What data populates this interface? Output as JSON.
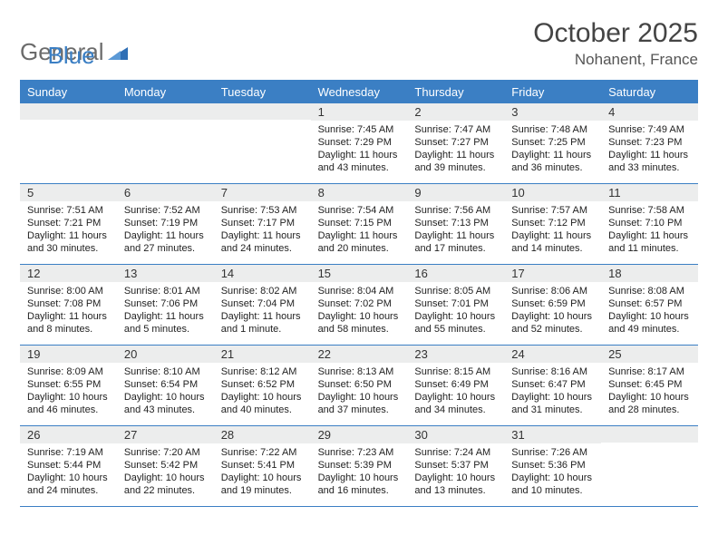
{
  "brand": {
    "part1": "General",
    "part2": "Blue"
  },
  "title": "October 2025",
  "location": "Nohanent, France",
  "colors": {
    "accent": "#3b7fc4",
    "headerText": "#ffffff",
    "bandBg": "#eceded",
    "bodyText": "#222222",
    "titleText": "#444444"
  },
  "layout": {
    "columns": 7,
    "rows": 5
  },
  "dayNames": [
    "Sunday",
    "Monday",
    "Tuesday",
    "Wednesday",
    "Thursday",
    "Friday",
    "Saturday"
  ],
  "weeks": [
    [
      {
        "num": "",
        "lines": []
      },
      {
        "num": "",
        "lines": []
      },
      {
        "num": "",
        "lines": []
      },
      {
        "num": "1",
        "lines": [
          "Sunrise: 7:45 AM",
          "Sunset: 7:29 PM",
          "Daylight: 11 hours",
          "and 43 minutes."
        ]
      },
      {
        "num": "2",
        "lines": [
          "Sunrise: 7:47 AM",
          "Sunset: 7:27 PM",
          "Daylight: 11 hours",
          "and 39 minutes."
        ]
      },
      {
        "num": "3",
        "lines": [
          "Sunrise: 7:48 AM",
          "Sunset: 7:25 PM",
          "Daylight: 11 hours",
          "and 36 minutes."
        ]
      },
      {
        "num": "4",
        "lines": [
          "Sunrise: 7:49 AM",
          "Sunset: 7:23 PM",
          "Daylight: 11 hours",
          "and 33 minutes."
        ]
      }
    ],
    [
      {
        "num": "5",
        "lines": [
          "Sunrise: 7:51 AM",
          "Sunset: 7:21 PM",
          "Daylight: 11 hours",
          "and 30 minutes."
        ]
      },
      {
        "num": "6",
        "lines": [
          "Sunrise: 7:52 AM",
          "Sunset: 7:19 PM",
          "Daylight: 11 hours",
          "and 27 minutes."
        ]
      },
      {
        "num": "7",
        "lines": [
          "Sunrise: 7:53 AM",
          "Sunset: 7:17 PM",
          "Daylight: 11 hours",
          "and 24 minutes."
        ]
      },
      {
        "num": "8",
        "lines": [
          "Sunrise: 7:54 AM",
          "Sunset: 7:15 PM",
          "Daylight: 11 hours",
          "and 20 minutes."
        ]
      },
      {
        "num": "9",
        "lines": [
          "Sunrise: 7:56 AM",
          "Sunset: 7:13 PM",
          "Daylight: 11 hours",
          "and 17 minutes."
        ]
      },
      {
        "num": "10",
        "lines": [
          "Sunrise: 7:57 AM",
          "Sunset: 7:12 PM",
          "Daylight: 11 hours",
          "and 14 minutes."
        ]
      },
      {
        "num": "11",
        "lines": [
          "Sunrise: 7:58 AM",
          "Sunset: 7:10 PM",
          "Daylight: 11 hours",
          "and 11 minutes."
        ]
      }
    ],
    [
      {
        "num": "12",
        "lines": [
          "Sunrise: 8:00 AM",
          "Sunset: 7:08 PM",
          "Daylight: 11 hours",
          "and 8 minutes."
        ]
      },
      {
        "num": "13",
        "lines": [
          "Sunrise: 8:01 AM",
          "Sunset: 7:06 PM",
          "Daylight: 11 hours",
          "and 5 minutes."
        ]
      },
      {
        "num": "14",
        "lines": [
          "Sunrise: 8:02 AM",
          "Sunset: 7:04 PM",
          "Daylight: 11 hours",
          "and 1 minute."
        ]
      },
      {
        "num": "15",
        "lines": [
          "Sunrise: 8:04 AM",
          "Sunset: 7:02 PM",
          "Daylight: 10 hours",
          "and 58 minutes."
        ]
      },
      {
        "num": "16",
        "lines": [
          "Sunrise: 8:05 AM",
          "Sunset: 7:01 PM",
          "Daylight: 10 hours",
          "and 55 minutes."
        ]
      },
      {
        "num": "17",
        "lines": [
          "Sunrise: 8:06 AM",
          "Sunset: 6:59 PM",
          "Daylight: 10 hours",
          "and 52 minutes."
        ]
      },
      {
        "num": "18",
        "lines": [
          "Sunrise: 8:08 AM",
          "Sunset: 6:57 PM",
          "Daylight: 10 hours",
          "and 49 minutes."
        ]
      }
    ],
    [
      {
        "num": "19",
        "lines": [
          "Sunrise: 8:09 AM",
          "Sunset: 6:55 PM",
          "Daylight: 10 hours",
          "and 46 minutes."
        ]
      },
      {
        "num": "20",
        "lines": [
          "Sunrise: 8:10 AM",
          "Sunset: 6:54 PM",
          "Daylight: 10 hours",
          "and 43 minutes."
        ]
      },
      {
        "num": "21",
        "lines": [
          "Sunrise: 8:12 AM",
          "Sunset: 6:52 PM",
          "Daylight: 10 hours",
          "and 40 minutes."
        ]
      },
      {
        "num": "22",
        "lines": [
          "Sunrise: 8:13 AM",
          "Sunset: 6:50 PM",
          "Daylight: 10 hours",
          "and 37 minutes."
        ]
      },
      {
        "num": "23",
        "lines": [
          "Sunrise: 8:15 AM",
          "Sunset: 6:49 PM",
          "Daylight: 10 hours",
          "and 34 minutes."
        ]
      },
      {
        "num": "24",
        "lines": [
          "Sunrise: 8:16 AM",
          "Sunset: 6:47 PM",
          "Daylight: 10 hours",
          "and 31 minutes."
        ]
      },
      {
        "num": "25",
        "lines": [
          "Sunrise: 8:17 AM",
          "Sunset: 6:45 PM",
          "Daylight: 10 hours",
          "and 28 minutes."
        ]
      }
    ],
    [
      {
        "num": "26",
        "lines": [
          "Sunrise: 7:19 AM",
          "Sunset: 5:44 PM",
          "Daylight: 10 hours",
          "and 24 minutes."
        ]
      },
      {
        "num": "27",
        "lines": [
          "Sunrise: 7:20 AM",
          "Sunset: 5:42 PM",
          "Daylight: 10 hours",
          "and 22 minutes."
        ]
      },
      {
        "num": "28",
        "lines": [
          "Sunrise: 7:22 AM",
          "Sunset: 5:41 PM",
          "Daylight: 10 hours",
          "and 19 minutes."
        ]
      },
      {
        "num": "29",
        "lines": [
          "Sunrise: 7:23 AM",
          "Sunset: 5:39 PM",
          "Daylight: 10 hours",
          "and 16 minutes."
        ]
      },
      {
        "num": "30",
        "lines": [
          "Sunrise: 7:24 AM",
          "Sunset: 5:37 PM",
          "Daylight: 10 hours",
          "and 13 minutes."
        ]
      },
      {
        "num": "31",
        "lines": [
          "Sunrise: 7:26 AM",
          "Sunset: 5:36 PM",
          "Daylight: 10 hours",
          "and 10 minutes."
        ]
      },
      {
        "num": "",
        "lines": []
      }
    ]
  ]
}
